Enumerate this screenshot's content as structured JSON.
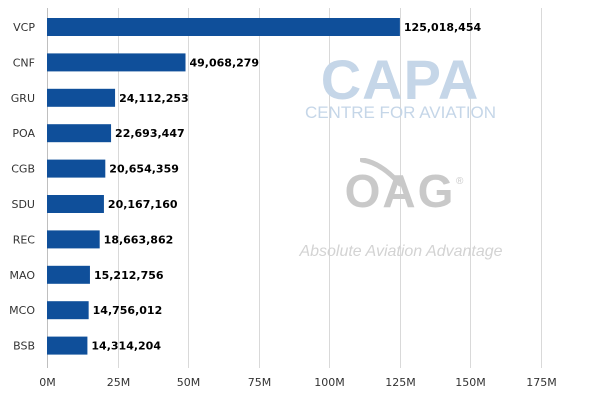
{
  "chart_data": {
    "type": "bar",
    "orientation": "horizontal",
    "categories": [
      "VCP",
      "CNF",
      "GRU",
      "POA",
      "CGB",
      "SDU",
      "REC",
      "MAO",
      "MCO",
      "BSB"
    ],
    "values": [
      125018454,
      49068279,
      24112253,
      22693447,
      20654359,
      20167160,
      18663862,
      15212756,
      14756012,
      14314204
    ],
    "value_labels": [
      "125,018,454",
      "49,068,279",
      "24,112,253",
      "22,693,447",
      "20,654,359",
      "20,167,160",
      "18,663,862",
      "15,212,756",
      "14,756,012",
      "14,314,204"
    ],
    "x_ticks": [
      0,
      25000000,
      50000000,
      75000000,
      100000000,
      125000000,
      150000000,
      175000000
    ],
    "x_tick_labels": [
      "0M",
      "25M",
      "50M",
      "75M",
      "100M",
      "125M",
      "150M",
      "175M"
    ],
    "xlim": [
      0,
      175000000
    ],
    "grid": true,
    "bar_color": "#0f4f9a",
    "title": "",
    "xlabel": "",
    "ylabel": ""
  },
  "watermarks": {
    "capa_logo": "CAPA",
    "capa_subtitle": "CENTRE FOR AVIATION",
    "oag_logo": "OAG",
    "oag_registered": "®",
    "oag_tagline": "Absolute Aviation Advantage"
  }
}
